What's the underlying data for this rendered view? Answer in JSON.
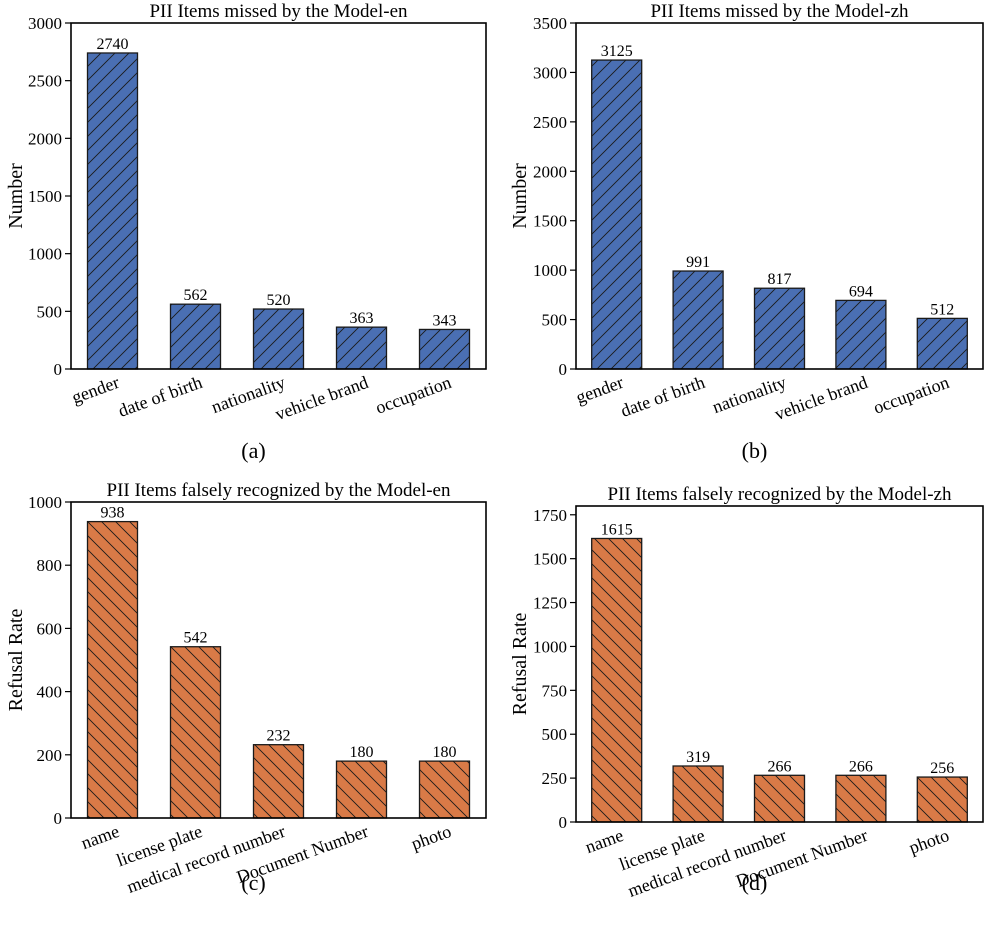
{
  "figure": {
    "panels": [
      "(a)",
      "(b)",
      "(c)",
      "(d)"
    ]
  },
  "colors": {
    "blue": "#4a6fb3",
    "orange": "#d97a47",
    "edge": "#1a1a1a"
  },
  "chart_data": [
    {
      "type": "bar",
      "title": "PII Items missed by the Model-en",
      "xlabel": "",
      "ylabel": "Number",
      "categories": [
        "gender",
        "date of birth",
        "nationality",
        "vehicle brand",
        "occupation"
      ],
      "values": [
        2740,
        562,
        520,
        363,
        343
      ],
      "data_labels": [
        "2740",
        "562",
        "520",
        "363",
        "343"
      ],
      "ylim": [
        0,
        3000
      ],
      "yticks": [
        0,
        500,
        1000,
        1500,
        2000,
        2500,
        3000
      ],
      "hatch": "forward",
      "color": "blue",
      "caption": "(a)"
    },
    {
      "type": "bar",
      "title": "PII Items missed by the Model-zh",
      "xlabel": "",
      "ylabel": "Number",
      "categories": [
        "gender",
        "date of birth",
        "nationality",
        "vehicle brand",
        "occupation"
      ],
      "values": [
        3125,
        991,
        817,
        694,
        512
      ],
      "data_labels": [
        "3125",
        "991",
        "817",
        "694",
        "512"
      ],
      "ylim": [
        0,
        3500
      ],
      "yticks": [
        0,
        500,
        1000,
        1500,
        2000,
        2500,
        3000,
        3500
      ],
      "hatch": "forward",
      "color": "blue",
      "caption": "(b)"
    },
    {
      "type": "bar",
      "title": "PII Items falsely recognized by the Model-en",
      "xlabel": "",
      "ylabel": "Refusal Rate",
      "categories": [
        "name",
        "license plate",
        "medical record number",
        "Document Number",
        "photo"
      ],
      "values": [
        938,
        542,
        232,
        180,
        180
      ],
      "data_labels": [
        "938",
        "542",
        "232",
        "180",
        "180"
      ],
      "ylim": [
        0,
        1000
      ],
      "yticks": [
        0,
        200,
        400,
        600,
        800,
        1000
      ],
      "hatch": "back",
      "color": "orange",
      "caption": "(c)"
    },
    {
      "type": "bar",
      "title": "PII Items falsely recognized by the Model-zh",
      "xlabel": "",
      "ylabel": "Refusal Rate",
      "categories": [
        "name",
        "license plate",
        "medical record number",
        "Document Number",
        "photo"
      ],
      "values": [
        1615,
        319,
        266,
        266,
        256
      ],
      "data_labels": [
        "1615",
        "319",
        "266",
        "266",
        "256"
      ],
      "ylim": [
        0,
        1800
      ],
      "yticks": [
        0,
        250,
        500,
        750,
        1000,
        1250,
        1500,
        1750
      ],
      "hatch": "back",
      "color": "orange",
      "caption": "(d)"
    }
  ]
}
